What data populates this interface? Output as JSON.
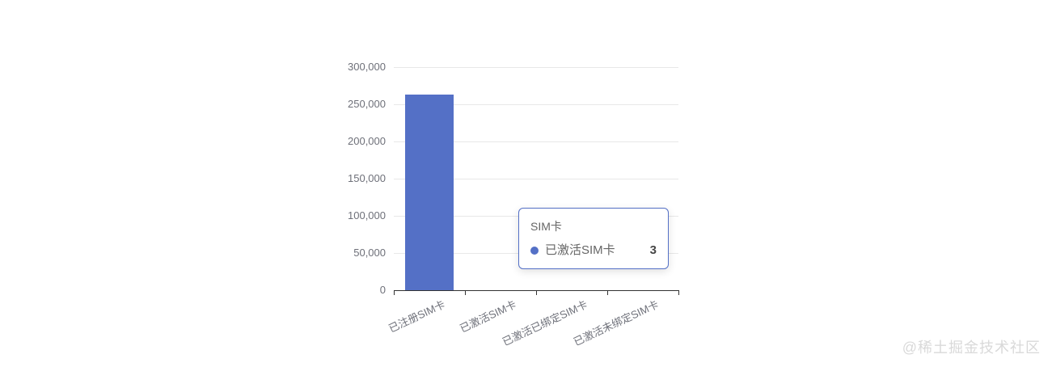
{
  "chart_data": {
    "type": "bar",
    "title": "",
    "xlabel": "",
    "ylabel": "",
    "categories": [
      "已注册SIM卡",
      "已激活SIM卡",
      "已激活已绑定SIM卡",
      "已激活未绑定SIM卡"
    ],
    "series": [
      {
        "name": "SIM卡",
        "values": [
          263000,
          3,
          0,
          0
        ]
      }
    ],
    "ylim": [
      0,
      300000
    ],
    "ytick_step": 50000,
    "ytick_labels": [
      "0",
      "50,000",
      "100,000",
      "150,000",
      "200,000",
      "250,000",
      "300,000"
    ],
    "grid": true,
    "legend_position": "none",
    "bar_color": "#5470c6",
    "gridline_color": "#e8e8e8",
    "axis_line_color": "#333333",
    "axis_label_color": "#6e7079"
  },
  "tooltip": {
    "title": "SIM卡",
    "series_label": "已激活SIM卡",
    "value": "3",
    "dot_color": "#5470c6",
    "border_color": "#5470c6"
  },
  "watermark": "@稀土掘金技术社区"
}
